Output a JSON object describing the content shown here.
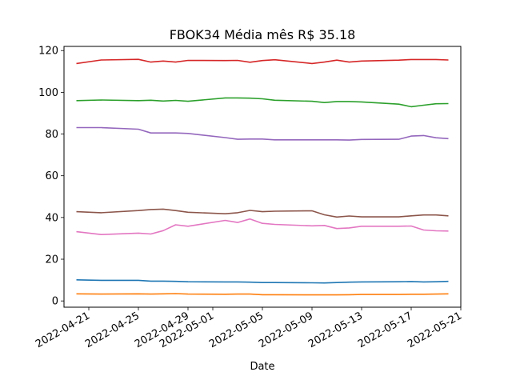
{
  "chart_data": {
    "type": "line",
    "title": "FBOK34 Média mês R$ 35.18",
    "xlabel": "Date",
    "ylabel": "",
    "xlim": [
      "2022-04-19",
      "2022-05-21"
    ],
    "ylim": [
      -3,
      122
    ],
    "grid": false,
    "legend": "none",
    "x_ticks": [
      "2022-04-21",
      "2022-04-25",
      "2022-04-29",
      "2022-05-01",
      "2022-05-05",
      "2022-05-09",
      "2022-05-13",
      "2022-05-17",
      "2022-05-21"
    ],
    "y_ticks": [
      0,
      20,
      40,
      60,
      80,
      100,
      120
    ],
    "x": [
      "2022-04-20",
      "2022-04-22",
      "2022-04-25",
      "2022-04-26",
      "2022-04-27",
      "2022-04-28",
      "2022-04-29",
      "2022-05-02",
      "2022-05-03",
      "2022-05-04",
      "2022-05-05",
      "2022-05-06",
      "2022-05-09",
      "2022-05-10",
      "2022-05-11",
      "2022-05-12",
      "2022-05-13",
      "2022-05-16",
      "2022-05-17",
      "2022-05-18",
      "2022-05-19",
      "2022-05-20"
    ],
    "series": [
      {
        "color": "#d62728",
        "values": [
          113.8,
          115.5,
          115.8,
          114.5,
          115.0,
          114.5,
          115.3,
          115.2,
          115.3,
          114.4,
          115.2,
          115.6,
          113.8,
          114.5,
          115.4,
          114.5,
          115.0,
          115.4,
          115.7,
          115.7,
          115.7,
          115.5
        ]
      },
      {
        "color": "#2ca02c",
        "values": [
          96.0,
          96.3,
          96.0,
          96.2,
          95.8,
          96.1,
          95.7,
          97.3,
          97.3,
          97.2,
          96.9,
          96.2,
          95.7,
          95.1,
          95.6,
          95.6,
          95.4,
          94.3,
          93.1,
          93.8,
          94.5,
          94.6
        ]
      },
      {
        "color": "#9467bd",
        "values": [
          83.1,
          83.1,
          82.3,
          80.5,
          80.5,
          80.5,
          80.3,
          78.3,
          77.5,
          77.6,
          77.6,
          77.2,
          77.2,
          77.2,
          77.2,
          77.1,
          77.4,
          77.5,
          79.0,
          79.3,
          78.2,
          77.8
        ]
      },
      {
        "color": "#8c564b",
        "values": [
          42.8,
          42.3,
          43.3,
          43.8,
          44.0,
          43.3,
          42.5,
          41.8,
          42.3,
          43.4,
          42.8,
          43.0,
          43.2,
          41.3,
          40.2,
          40.7,
          40.3,
          40.3,
          40.8,
          41.2,
          41.2,
          40.8
        ]
      },
      {
        "color": "#e377c2",
        "values": [
          33.2,
          31.8,
          32.5,
          32.1,
          33.7,
          36.5,
          35.8,
          38.6,
          37.6,
          39.3,
          37.2,
          36.7,
          36.0,
          36.2,
          34.7,
          35.0,
          35.8,
          35.8,
          35.9,
          34.0,
          33.6,
          33.5
        ]
      },
      {
        "color": "#1f77b4",
        "values": [
          10.1,
          9.9,
          9.9,
          9.5,
          9.5,
          9.4,
          9.2,
          9.1,
          9.1,
          9.0,
          8.8,
          8.8,
          8.7,
          8.6,
          8.8,
          9.0,
          9.1,
          9.2,
          9.3,
          9.1,
          9.2,
          9.4
        ]
      },
      {
        "color": "#ff7f0e",
        "values": [
          3.4,
          3.3,
          3.4,
          3.3,
          3.4,
          3.5,
          3.3,
          3.2,
          3.3,
          3.3,
          3.0,
          3.0,
          2.9,
          2.9,
          2.9,
          3.0,
          3.1,
          3.1,
          3.2,
          3.2,
          3.3,
          3.4
        ]
      }
    ]
  }
}
